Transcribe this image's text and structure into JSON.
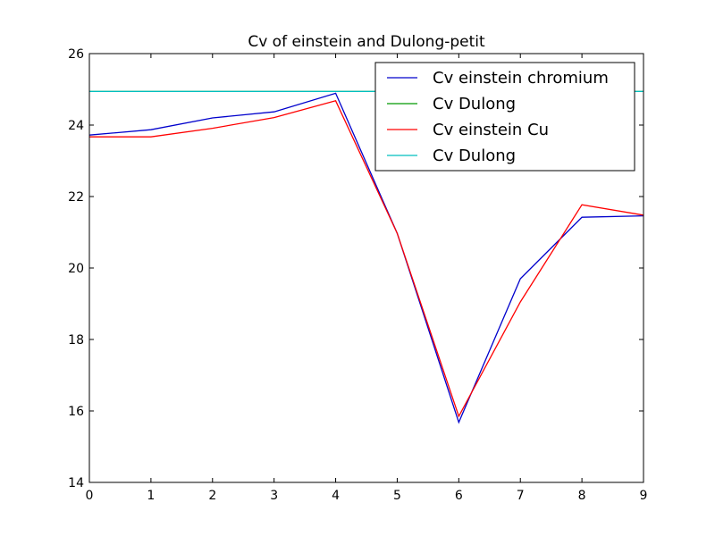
{
  "chart_data": {
    "type": "line",
    "title": "Cv of einstein and Dulong-petit",
    "xlabel": "",
    "ylabel": "",
    "xlim": [
      0,
      9
    ],
    "ylim": [
      14,
      26
    ],
    "xticks": [
      "0",
      "1",
      "2",
      "3",
      "4",
      "5",
      "6",
      "7",
      "8",
      "9"
    ],
    "yticks": [
      "14",
      "16",
      "18",
      "20",
      "22",
      "24",
      "26"
    ],
    "grid": false,
    "legend_position": "top-right",
    "x": [
      0,
      1,
      2,
      3,
      4,
      5,
      6,
      7,
      8,
      9
    ],
    "series": [
      {
        "name": "Cv einstein chromium",
        "color": "#0000cc",
        "values": [
          23.72,
          23.87,
          24.2,
          24.37,
          24.89,
          20.97,
          15.68,
          19.7,
          21.42,
          21.46
        ]
      },
      {
        "name": "Cv Dulong",
        "color": "#009900",
        "values": [
          24.94,
          24.94,
          24.94,
          24.94,
          24.94,
          24.94,
          24.94,
          24.94,
          24.94,
          24.94
        ]
      },
      {
        "name": "Cv einstein Cu",
        "color": "#ff0000",
        "values": [
          23.67,
          23.67,
          23.91,
          24.21,
          24.68,
          20.97,
          15.85,
          19.05,
          21.77,
          21.48
        ]
      },
      {
        "name": "Cv Dulong",
        "color": "#00bfbf",
        "values": [
          24.94,
          24.94,
          24.94,
          24.94,
          24.94,
          24.94,
          24.94,
          24.94,
          24.94,
          24.94
        ]
      }
    ]
  }
}
